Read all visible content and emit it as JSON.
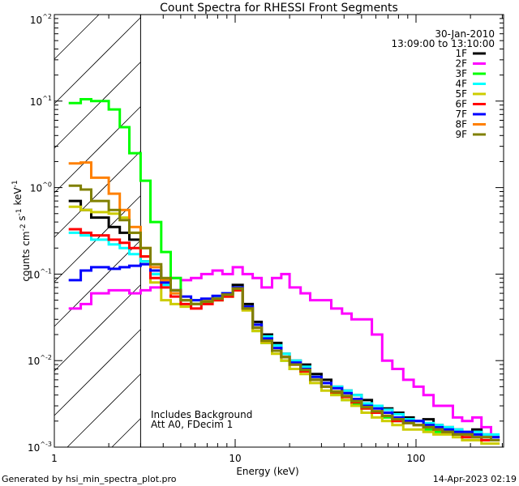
{
  "chart_data": {
    "type": "line",
    "title": "Count Spectra for RHESSI Front Segments",
    "xlabel": "Energy (keV)",
    "ylabel": "counts cm-2 s-1 keV-1",
    "xscale": "log",
    "yscale": "log",
    "xlim": [
      1,
      305
    ],
    "ylim": [
      0.001,
      100
    ],
    "x_tick_labels": [
      "1",
      "10",
      "100"
    ],
    "y_tick_labels": [
      "10^-3",
      "10^-2",
      "10^-1",
      "10^0",
      "10^1",
      "10^2"
    ],
    "date": "30-Jan-2010",
    "time_range": "13:09:00 to 13:10:00",
    "annotations": [
      "Includes Background",
      "Att A0, FDecim 1"
    ],
    "shaded_region_keV": [
      1,
      3
    ],
    "energy_edges": [
      1.2,
      1.4,
      1.6,
      2.0,
      2.3,
      2.6,
      3.0,
      3.4,
      3.9,
      4.4,
      5.0,
      5.7,
      6.5,
      7.5,
      8.5,
      9.7,
      11,
      12.5,
      14,
      16,
      18,
      20,
      23,
      26,
      30,
      34,
      39,
      44,
      50,
      57,
      65,
      74,
      85,
      97,
      110,
      125,
      140,
      160,
      180,
      205,
      230,
      260,
      290
    ],
    "series": [
      {
        "name": "1F",
        "color": "#000000",
        "values": [
          0.7,
          0.55,
          0.45,
          0.35,
          0.3,
          0.25,
          0.14,
          0.1,
          0.08,
          0.065,
          0.05,
          0.045,
          0.05,
          0.055,
          0.06,
          0.075,
          0.045,
          0.028,
          0.02,
          0.016,
          0.012,
          0.01,
          0.009,
          0.007,
          0.006,
          0.005,
          0.0045,
          0.004,
          0.0035,
          0.003,
          0.0028,
          0.0025,
          0.0022,
          0.002,
          0.0021,
          0.0018,
          0.0017,
          0.0016,
          0.0015,
          0.0016,
          0.0014,
          0.0013
        ]
      },
      {
        "name": "2F",
        "color": "#ff00ff",
        "values": [
          0.04,
          0.045,
          0.06,
          0.065,
          0.065,
          0.06,
          0.065,
          0.07,
          0.08,
          0.09,
          0.085,
          0.09,
          0.1,
          0.11,
          0.1,
          0.12,
          0.1,
          0.09,
          0.07,
          0.09,
          0.1,
          0.07,
          0.06,
          0.05,
          0.05,
          0.04,
          0.035,
          0.03,
          0.03,
          0.02,
          0.01,
          0.008,
          0.006,
          0.005,
          0.004,
          0.003,
          0.003,
          0.0022,
          0.002,
          0.0022,
          0.0017,
          0.0012
        ]
      },
      {
        "name": "3F",
        "color": "#00ff00",
        "values": [
          9.5,
          10.5,
          10,
          8,
          5,
          2.5,
          1.2,
          0.4,
          0.18,
          0.09,
          0.05,
          0.045,
          0.05,
          0.05,
          0.055,
          0.065,
          0.04,
          0.022,
          0.016,
          0.013,
          0.01,
          0.008,
          0.0075,
          0.006,
          0.005,
          0.0042,
          0.0035,
          0.0032,
          0.0028,
          0.0025,
          0.0022,
          0.002,
          0.0019,
          0.0018,
          0.0016,
          0.0015,
          0.0015,
          0.0014,
          0.0013,
          0.0013,
          0.0012,
          0.0012
        ]
      },
      {
        "name": "4F",
        "color": "#00ffff",
        "values": [
          0.3,
          0.28,
          0.25,
          0.22,
          0.2,
          0.17,
          0.14,
          0.1,
          0.075,
          0.06,
          0.05,
          0.05,
          0.05,
          0.055,
          0.06,
          0.07,
          0.042,
          0.026,
          0.019,
          0.015,
          0.012,
          0.01,
          0.0085,
          0.0065,
          0.0055,
          0.005,
          0.0045,
          0.004,
          0.0032,
          0.003,
          0.0027,
          0.0024,
          0.0021,
          0.002,
          0.0019,
          0.0018,
          0.0017,
          0.0016,
          0.0015,
          0.0015,
          0.0014,
          0.0014
        ]
      },
      {
        "name": "5F",
        "color": "#cccc00",
        "values": [
          0.6,
          0.55,
          0.52,
          0.5,
          0.45,
          0.3,
          0.16,
          0.08,
          0.05,
          0.045,
          0.042,
          0.045,
          0.05,
          0.05,
          0.055,
          0.065,
          0.038,
          0.022,
          0.016,
          0.012,
          0.01,
          0.008,
          0.007,
          0.0055,
          0.0045,
          0.004,
          0.0035,
          0.003,
          0.0025,
          0.0022,
          0.002,
          0.0018,
          0.0016,
          0.0016,
          0.0015,
          0.0014,
          0.0014,
          0.0013,
          0.0012,
          0.0012,
          0.0011,
          0.0011
        ]
      },
      {
        "name": "6F",
        "color": "#ff0000",
        "values": [
          0.33,
          0.3,
          0.28,
          0.25,
          0.23,
          0.2,
          0.16,
          0.09,
          0.07,
          0.055,
          0.045,
          0.04,
          0.045,
          0.05,
          0.055,
          0.065,
          0.04,
          0.024,
          0.017,
          0.013,
          0.011,
          0.009,
          0.0075,
          0.006,
          0.005,
          0.0043,
          0.0038,
          0.0033,
          0.0028,
          0.0025,
          0.0023,
          0.002,
          0.0019,
          0.0018,
          0.0017,
          0.0016,
          0.0015,
          0.0014,
          0.0013,
          0.0013,
          0.0012,
          0.0012
        ]
      },
      {
        "name": "7F",
        "color": "#0000ff",
        "values": [
          0.085,
          0.11,
          0.12,
          0.115,
          0.12,
          0.125,
          0.13,
          0.11,
          0.08,
          0.065,
          0.055,
          0.05,
          0.052,
          0.056,
          0.06,
          0.07,
          0.042,
          0.026,
          0.018,
          0.014,
          0.011,
          0.0095,
          0.008,
          0.0065,
          0.0055,
          0.0048,
          0.0042,
          0.0036,
          0.003,
          0.0028,
          0.0025,
          0.0022,
          0.002,
          0.002,
          0.0018,
          0.0017,
          0.0016,
          0.0015,
          0.0015,
          0.0014,
          0.0013,
          0.0013
        ]
      },
      {
        "name": "8F",
        "color": "#ff8000",
        "values": [
          1.9,
          1.95,
          1.3,
          0.85,
          0.55,
          0.35,
          0.2,
          0.12,
          0.085,
          0.06,
          0.05,
          0.045,
          0.048,
          0.052,
          0.058,
          0.068,
          0.04,
          0.024,
          0.017,
          0.013,
          0.011,
          0.009,
          0.0078,
          0.006,
          0.005,
          0.0044,
          0.0039,
          0.0034,
          0.0029,
          0.0026,
          0.0023,
          0.0021,
          0.0019,
          0.0018,
          0.0017,
          0.0016,
          0.0015,
          0.0014,
          0.0014,
          0.0013,
          0.0013,
          0.0012
        ]
      },
      {
        "name": "9F",
        "color": "#808000",
        "values": [
          1.05,
          0.95,
          0.7,
          0.55,
          0.42,
          0.3,
          0.2,
          0.13,
          0.09,
          0.065,
          0.05,
          0.045,
          0.048,
          0.052,
          0.058,
          0.068,
          0.04,
          0.024,
          0.017,
          0.013,
          0.011,
          0.009,
          0.0078,
          0.006,
          0.005,
          0.0044,
          0.0039,
          0.0034,
          0.0029,
          0.0026,
          0.0023,
          0.0021,
          0.0019,
          0.0018,
          0.0017,
          0.0016,
          0.0015,
          0.0014,
          0.0014,
          0.0013,
          0.0013,
          0.0012
        ]
      }
    ]
  },
  "footer": {
    "generated_by": "Generated by hsi_min_spectra_plot.pro",
    "timestamp": "14-Apr-2023 02:19"
  }
}
